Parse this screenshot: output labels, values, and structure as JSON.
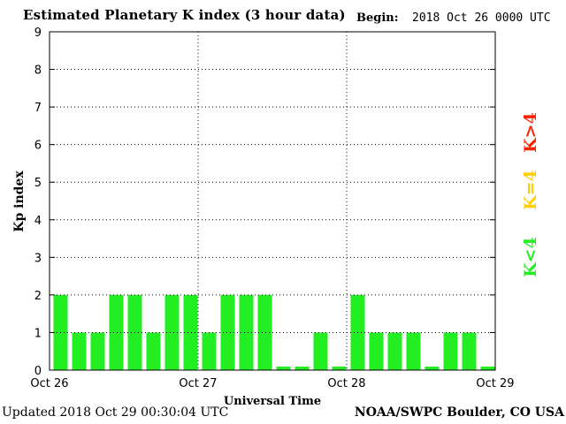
{
  "header": {
    "title": "Estimated Planetary K index (3 hour data)",
    "begin_label": "Begin:",
    "begin_value": "2018 Oct 26 0000 UTC"
  },
  "footer": {
    "updated": "Updated 2018 Oct 29 00:30:04 UTC",
    "source": "NOAA/SWPC Boulder, CO USA"
  },
  "legend": [
    {
      "label": "K>4",
      "color": "#ff2200"
    },
    {
      "label": "K=4",
      "color": "#ffd000"
    },
    {
      "label": "K<4",
      "color": "#22ee22"
    }
  ],
  "chart_data": {
    "type": "bar",
    "title": "Estimated Planetary K index (3 hour data)",
    "xlabel": "Universal Time",
    "ylabel": "Kp index",
    "ylim": [
      0,
      9
    ],
    "yticks": [
      0,
      1,
      2,
      3,
      4,
      5,
      6,
      7,
      8,
      9
    ],
    "xticks": [
      "Oct 26",
      "Oct 27",
      "Oct 28",
      "Oct 29"
    ],
    "grid": true,
    "bar_color": "#22ee22",
    "series": [
      {
        "values": [
          2,
          1,
          1,
          2,
          2,
          1,
          2,
          2,
          1,
          2,
          2,
          2,
          0,
          0,
          1,
          0,
          2,
          1,
          1,
          1,
          0,
          1,
          1,
          0
        ]
      }
    ]
  }
}
